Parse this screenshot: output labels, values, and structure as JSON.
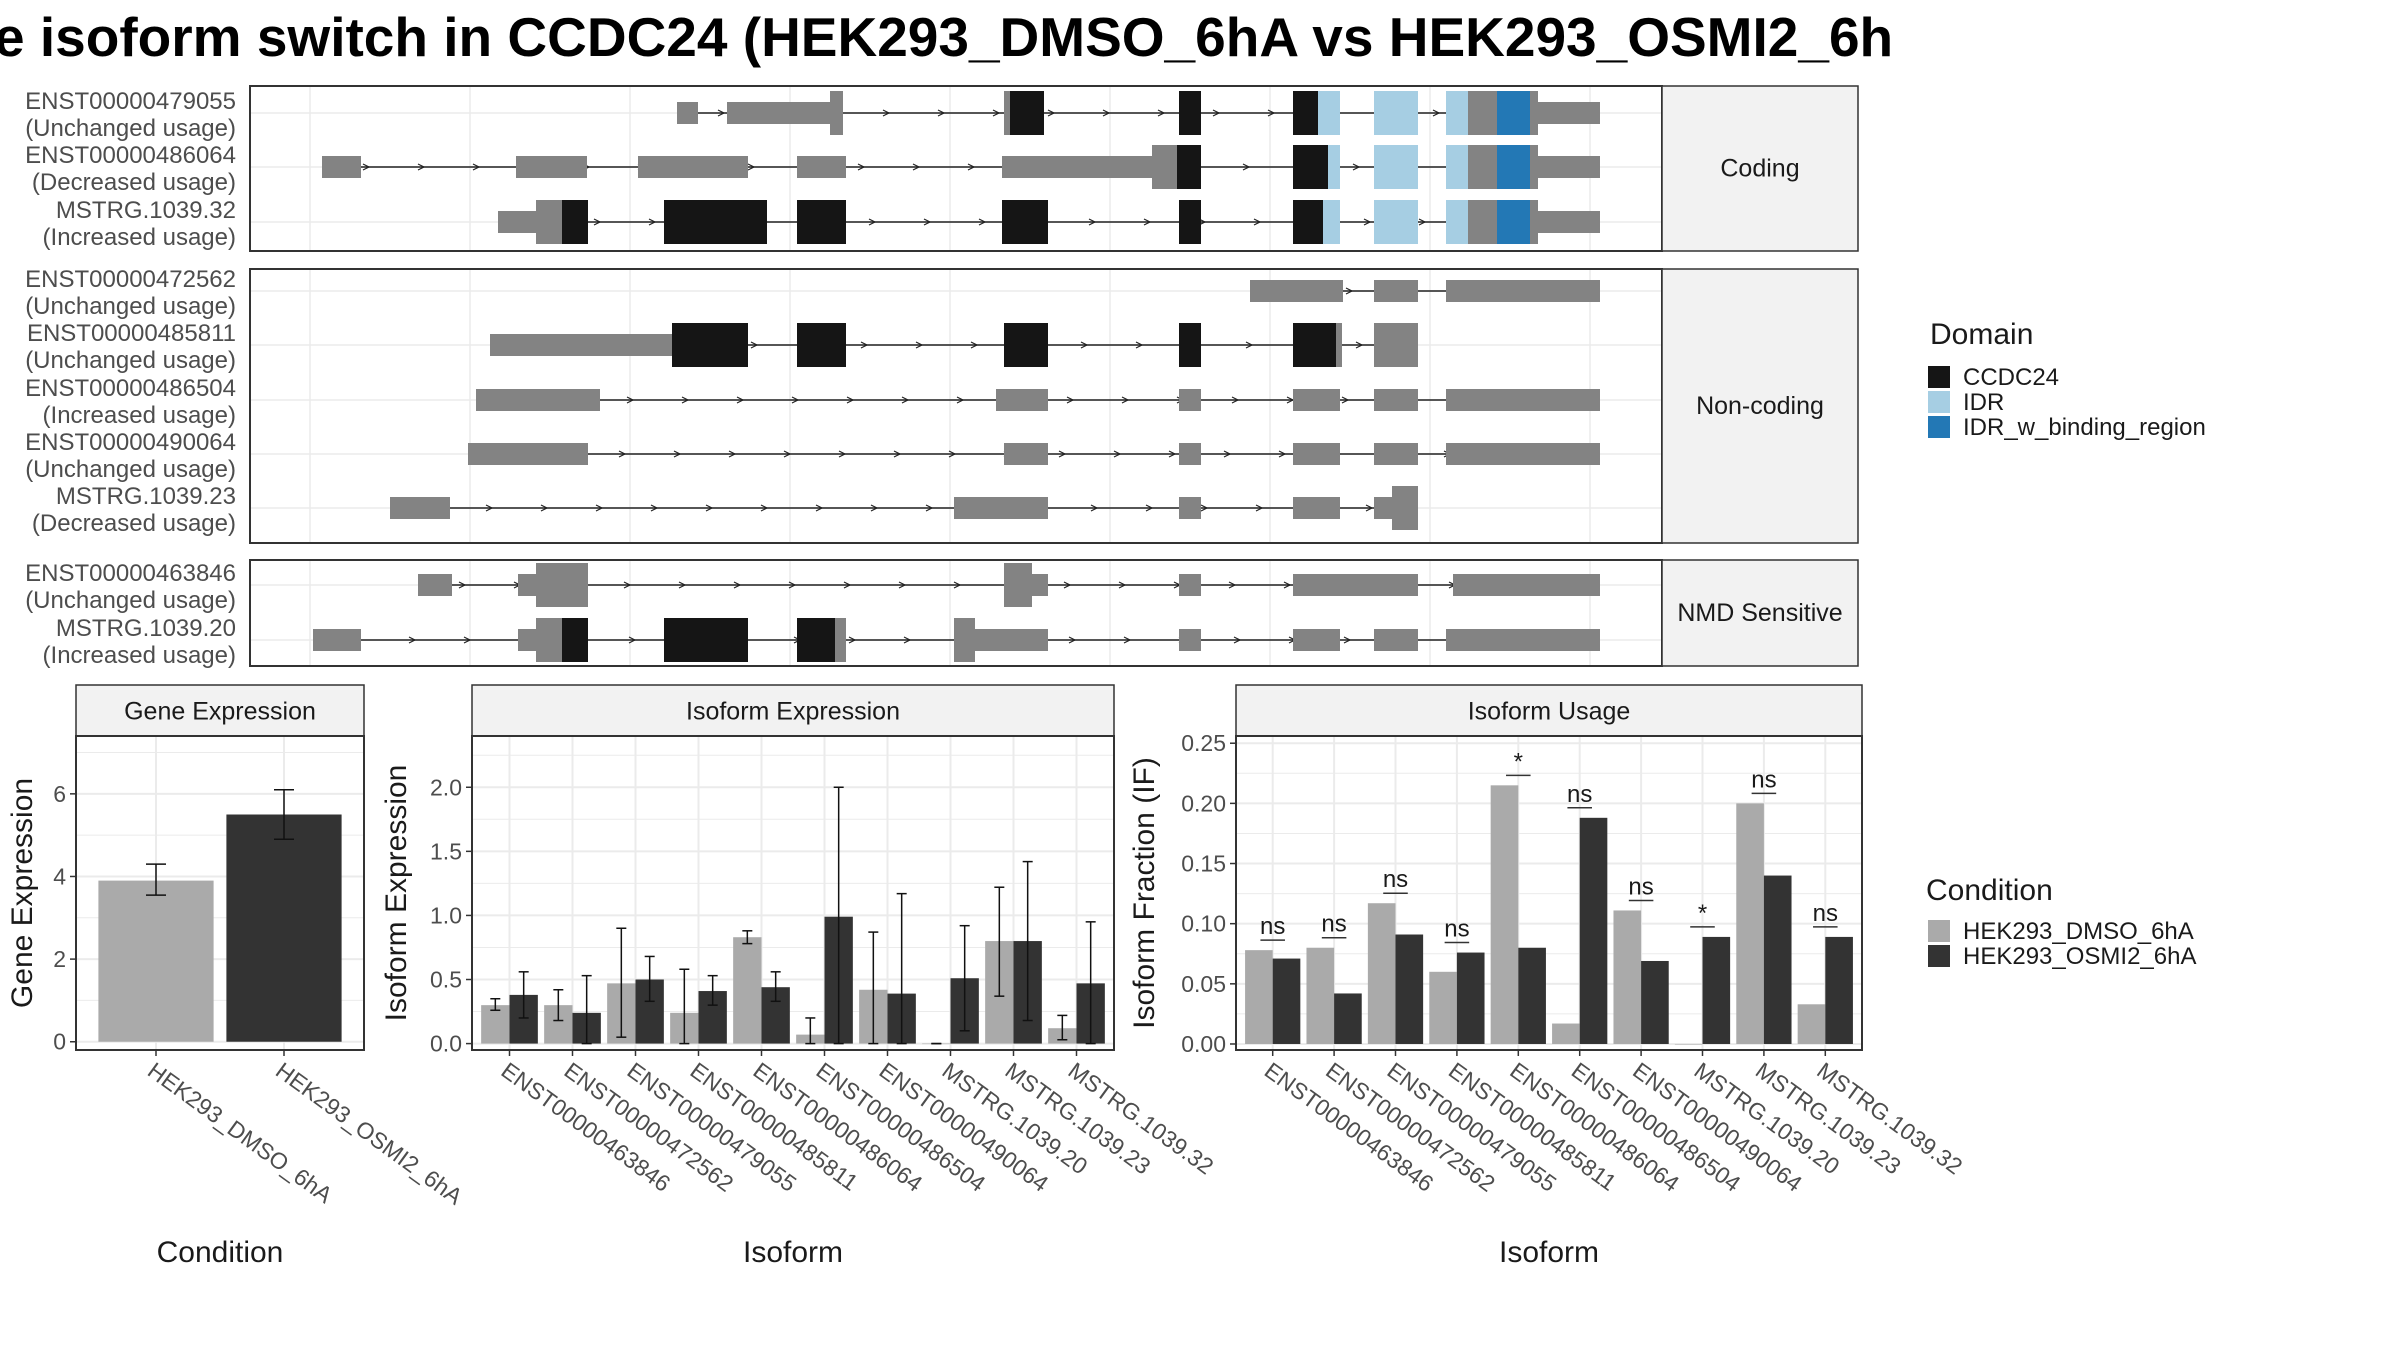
{
  "title": "e isoform switch in CCDC24 (HEK293_DMSO_6hA vs HEK293_OSMI2_6h",
  "colors": {
    "ccdc24": "#151515",
    "idr": "#a6cee3",
    "idr_binding": "#2378b5",
    "gray_exon": "#838383",
    "dmso": "#aaaaaa",
    "osmi": "#333333",
    "strip": "#f2f2f2",
    "grid": "#ebebeb",
    "axis_text": "#4d4d4d"
  },
  "structure": {
    "domain_legend": {
      "title": "Domain",
      "items": [
        {
          "label": "CCDC24",
          "color": "#151515"
        },
        {
          "label": "IDR",
          "color": "#a6cee3"
        },
        {
          "label": "IDR_w_binding_region",
          "color": "#2378b5"
        }
      ]
    },
    "panels": [
      {
        "label": "Coding",
        "isoforms": [
          {
            "id": "ENST00000479055",
            "usage": "(Unchanged usage)",
            "exons": [
              [
                0.233,
                0.258,
                "g"
              ],
              [
                0.288,
                0.439,
                "g"
              ],
              [
                0.439,
                0.461,
                "g"
              ],
              [
                0.461,
                0.463,
                "g"
              ],
              [
                0.463,
                0.543,
                "b"
              ],
              [
                0.695,
                0.729,
                "b"
              ],
              [
                0.84,
                0.866,
                "b"
              ],
              [
                0.866,
                0.891,
                "l"
              ],
              [
                0.937,
                0.982,
                "l"
              ],
              [
                1.039,
                1.062,
                "l"
              ],
              [
                1.062,
                1.107,
                "g"
              ],
              [
                1.107,
                1.159,
                "d"
              ],
              [
                1.159,
                1.171,
                "g"
              ],
              [
                1.171,
                1.259,
                "g"
              ]
            ],
            "thick": [
              [
                0.439,
                0.461
              ]
            ]
          },
          {
            "id": "ENST00000486064",
            "usage": "(Decreased usage)",
            "exons": [
              [
                0.0,
                0.0,
                "g"
              ],
              [
                0.0,
                0.075,
                "g"
              ],
              [
                0.243,
                0.384,
                "g"
              ],
              [
                0.402,
                0.615,
                "g"
              ],
              [
                0.665,
                0.762,
                "g"
              ],
              [
                0.838,
                1.0,
                "g"
              ]
            ],
            "thick": []
          },
          {
            "id": "MSTRG.1039.32",
            "usage": "(Increased usage)",
            "exons": [],
            "thick": []
          }
        ]
      },
      {
        "label": "Non-coding",
        "isoforms": [
          {
            "id": "ENST00000472562",
            "usage": "(Unchanged usage)"
          },
          {
            "id": "ENST00000485811",
            "usage": "(Unchanged usage)"
          },
          {
            "id": "ENST00000486504",
            "usage": "(Increased usage)"
          },
          {
            "id": "ENST00000490064",
            "usage": "(Unchanged usage)"
          },
          {
            "id": "MSTRG.1039.23",
            "usage": "(Decreased usage)"
          }
        ]
      },
      {
        "label": "NMD Sensitive",
        "isoforms": [
          {
            "id": "ENST00000463846",
            "usage": "(Unchanged usage)"
          },
          {
            "id": "MSTRG.1039.20",
            "usage": "(Increased usage)"
          }
        ]
      }
    ]
  },
  "chart_data": [
    {
      "type": "bar",
      "title": "Gene Expression",
      "xlabel": "Condition",
      "ylabel": "Gene Expression",
      "categories": [
        "HEK293_DMSO_6hA",
        "HEK293_OSMI2_6hA"
      ],
      "values": [
        3.9,
        5.5
      ],
      "error": [
        [
          3.55,
          4.3
        ],
        [
          4.9,
          6.1
        ]
      ],
      "ylim": [
        -0.2,
        7.4
      ],
      "yticks": [
        0,
        2,
        4,
        6
      ]
    },
    {
      "type": "bar",
      "title": "Isoform Expression",
      "xlabel": "Isoform",
      "ylabel": "Isoform Expression",
      "categories": [
        "ENST00000463846",
        "ENST00000472562",
        "ENST00000479055",
        "ENST00000485811",
        "ENST00000486064",
        "ENST00000486504",
        "ENST00000490064",
        "MSTRG.1039.20",
        "MSTRG.1039.23",
        "MSTRG.1039.32"
      ],
      "series": [
        {
          "name": "HEK293_DMSO_6hA",
          "values": [
            0.3,
            0.3,
            0.47,
            0.24,
            0.83,
            0.07,
            0.42,
            0.0,
            0.8,
            0.12
          ],
          "error": [
            [
              0.26,
              0.35
            ],
            [
              0.18,
              0.42
            ],
            [
              0.05,
              0.9
            ],
            [
              0.0,
              0.58
            ],
            [
              0.78,
              0.88
            ],
            [
              0.0,
              0.2
            ],
            [
              0.0,
              0.87
            ],
            [
              0.0,
              0.0
            ],
            [
              0.37,
              1.22
            ],
            [
              0.03,
              0.22
            ]
          ]
        },
        {
          "name": "HEK293_OSMI2_6hA",
          "values": [
            0.38,
            0.24,
            0.5,
            0.41,
            0.44,
            0.99,
            0.39,
            0.51,
            0.8,
            0.47
          ],
          "error": [
            [
              0.2,
              0.56
            ],
            [
              0.0,
              0.53
            ],
            [
              0.33,
              0.68
            ],
            [
              0.3,
              0.53
            ],
            [
              0.33,
              0.56
            ],
            [
              0.0,
              2.0
            ],
            [
              0.0,
              1.17
            ],
            [
              0.1,
              0.92
            ],
            [
              0.18,
              1.42
            ],
            [
              0.0,
              0.95
            ]
          ]
        }
      ],
      "ylim": [
        -0.05,
        2.4
      ],
      "yticks": [
        0.0,
        0.5,
        1.0,
        1.5,
        2.0
      ]
    },
    {
      "type": "bar",
      "title": "Isoform Usage",
      "xlabel": "Isoform",
      "ylabel": "Isoform Fraction (IF)",
      "categories": [
        "ENST00000463846",
        "ENST00000472562",
        "ENST00000479055",
        "ENST00000485811",
        "ENST00000486064",
        "ENST00000486504",
        "ENST00000490064",
        "MSTRG.1039.20",
        "MSTRG.1039.23",
        "MSTRG.1039.32"
      ],
      "series": [
        {
          "name": "HEK293_DMSO_6hA",
          "values": [
            0.078,
            0.08,
            0.117,
            0.06,
            0.215,
            0.017,
            0.111,
            0.0,
            0.2,
            0.033
          ]
        },
        {
          "name": "HEK293_OSMI2_6hA",
          "values": [
            0.071,
            0.042,
            0.091,
            0.076,
            0.08,
            0.188,
            0.069,
            0.089,
            0.14,
            0.089
          ]
        }
      ],
      "significance": [
        "ns",
        "ns",
        "ns",
        "ns",
        "*",
        "ns",
        "ns",
        "*",
        "ns",
        "ns"
      ],
      "ylim": [
        -0.005,
        0.256
      ],
      "yticks": [
        0.0,
        0.05,
        0.1,
        0.15,
        0.2,
        0.25
      ]
    }
  ],
  "condition_legend": {
    "title": "Condition",
    "items": [
      {
        "label": "HEK293_DMSO_6hA",
        "color": "#aaaaaa"
      },
      {
        "label": "HEK293_OSMI2_6hA",
        "color": "#333333"
      }
    ]
  }
}
